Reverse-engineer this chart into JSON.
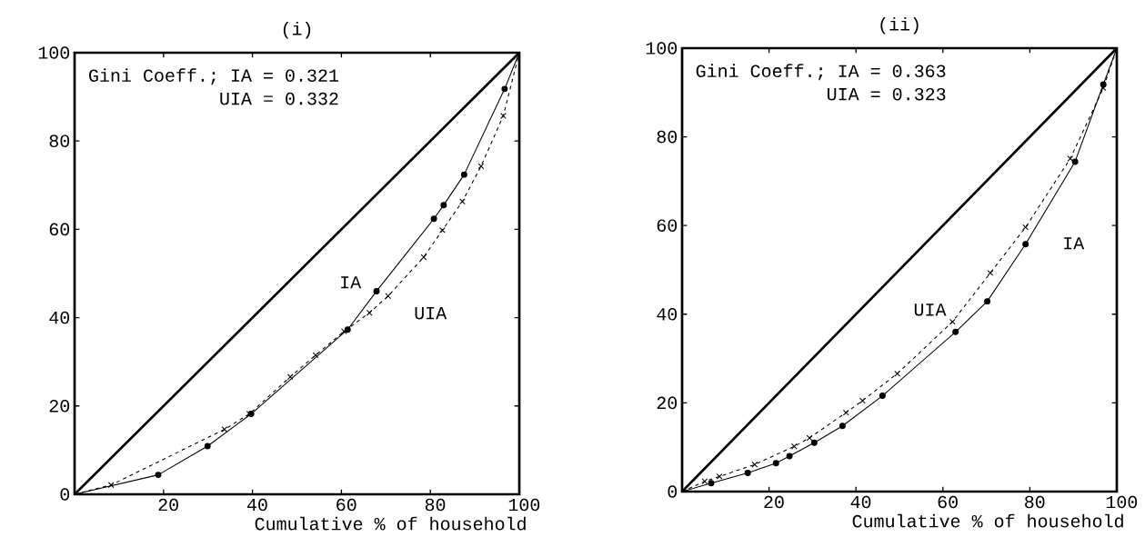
{
  "chart_data": [
    {
      "type": "line",
      "title": "(i)",
      "xlabel": "Cumulative % of household",
      "xlim": [
        0,
        100
      ],
      "ylim": [
        0,
        100
      ],
      "xticks": [
        20,
        40,
        60,
        80,
        100
      ],
      "yticks": [
        0,
        20,
        40,
        60,
        80,
        100
      ],
      "grid": false,
      "legend": false,
      "annotations": [
        "Gini Coeff.; IA = 0.321",
        "UIA = 0.332"
      ],
      "series": [
        {
          "color": "#000000",
          "line_style": "solid",
          "marker": "none",
          "x": [
            0,
            100
          ],
          "values": [
            0,
            100
          ]
        },
        {
          "name": "IA",
          "color": "#000000",
          "line_style": "solid",
          "marker": "circle",
          "x": [
            0,
            18.8,
            29.9,
            39.7,
            61.4,
            67.9,
            80.8,
            83,
            87.6,
            96.7,
            100
          ],
          "values": [
            0,
            4.4,
            10.9,
            18.2,
            37.3,
            46,
            62.4,
            65.5,
            72.4,
            91.8,
            100
          ]
        },
        {
          "name": "UIA",
          "color": "#000000",
          "line_style": "dashed",
          "marker": "cross",
          "x": [
            0,
            8.2,
            33.7,
            39.3,
            48.5,
            54.2,
            60.6,
            66.3,
            70.5,
            78.5,
            82.7,
            87.2,
            91.4,
            96.4,
            100
          ],
          "values": [
            0,
            2.1,
            14.7,
            18.2,
            26.6,
            31.5,
            36.9,
            41.1,
            44.9,
            53.7,
            59.8,
            66.3,
            74.3,
            85.7,
            100
          ]
        }
      ]
    },
    {
      "type": "line",
      "title": "(ii)",
      "xlabel": "Cumulative % of household",
      "xlim": [
        0,
        100
      ],
      "ylim": [
        0,
        100
      ],
      "xticks": [
        20,
        40,
        60,
        80,
        100
      ],
      "yticks": [
        0,
        20,
        40,
        60,
        80,
        100
      ],
      "grid": false,
      "legend": false,
      "annotations": [
        "Gini Coeff.; IA = 0.363",
        "UIA = 0.323"
      ],
      "series": [
        {
          "color": "#000000",
          "line_style": "solid",
          "marker": "none",
          "x": [
            0,
            100
          ],
          "values": [
            0,
            100
          ]
        },
        {
          "name": "IA",
          "color": "#000000",
          "line_style": "solid",
          "marker": "circle",
          "x": [
            0,
            6.7,
            15.1,
            21.6,
            24.7,
            30.4,
            36.9,
            46.1,
            62.9,
            70.2,
            79,
            90.4,
            96.9,
            100
          ],
          "values": [
            0,
            1.9,
            4.2,
            6.4,
            8,
            11,
            14.8,
            21.6,
            36,
            42.9,
            55.8,
            74.4,
            91.8,
            100
          ]
        },
        {
          "name": "UIA",
          "color": "#000000",
          "line_style": "dashed",
          "marker": "cross",
          "x": [
            0,
            5.2,
            8.6,
            16.7,
            25.8,
            29.3,
            37.7,
            41.5,
            49.5,
            62.2,
            70.9,
            79,
            89.3,
            96.9,
            100
          ],
          "values": [
            0,
            2.3,
            3.4,
            6.1,
            10.2,
            12.1,
            17.8,
            20.5,
            26.6,
            38.3,
            49.3,
            59.6,
            75.1,
            91,
            100
          ]
        }
      ]
    }
  ]
}
